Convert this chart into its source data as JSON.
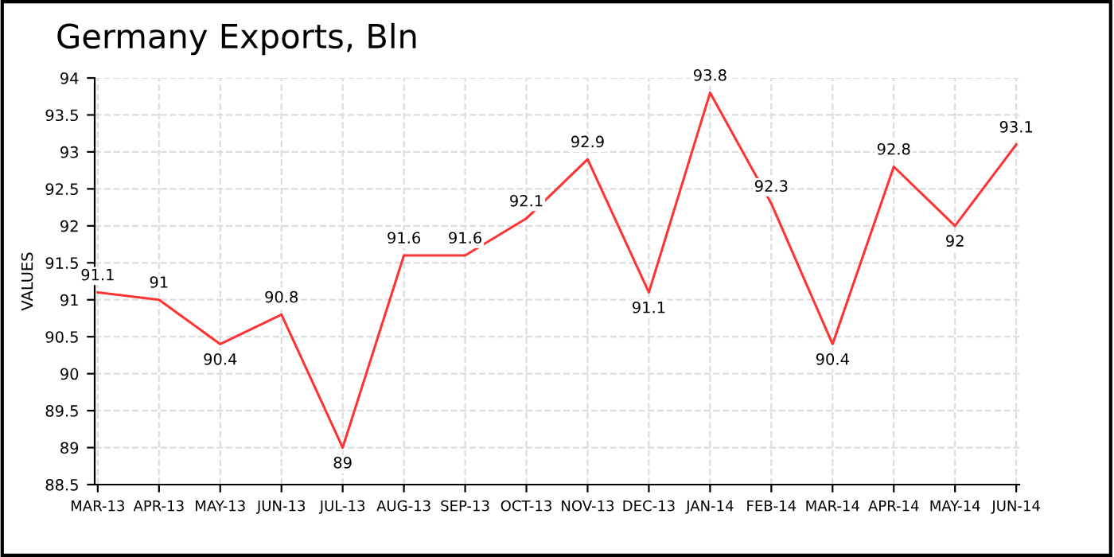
{
  "chart_data": {
    "type": "line",
    "title": "Germany Exports, Bln",
    "ylabel": "VALUES",
    "categories": [
      "MAR-13",
      "APR-13",
      "MAY-13",
      "JUN-13",
      "JUL-13",
      "AUG-13",
      "SEP-13",
      "OCT-13",
      "NOV-13",
      "DEC-13",
      "JAN-14",
      "FEB-14",
      "MAR-14",
      "APR-14",
      "MAY-14",
      "JUN-14"
    ],
    "series": [
      {
        "color": "#ff3333",
        "values": [
          91.1,
          91,
          90.4,
          90.8,
          89,
          91.6,
          91.6,
          92.1,
          92.9,
          91.1,
          93.8,
          92.3,
          90.4,
          92.8,
          92,
          93.1
        ]
      }
    ],
    "ylim": [
      88.5,
      94
    ],
    "yticks": [
      88.5,
      89,
      89.5,
      90,
      90.5,
      91,
      91.5,
      92,
      92.5,
      93,
      93.5,
      94
    ],
    "grid": true,
    "data_labels": true,
    "marker": "none",
    "line_style": "solid"
  }
}
